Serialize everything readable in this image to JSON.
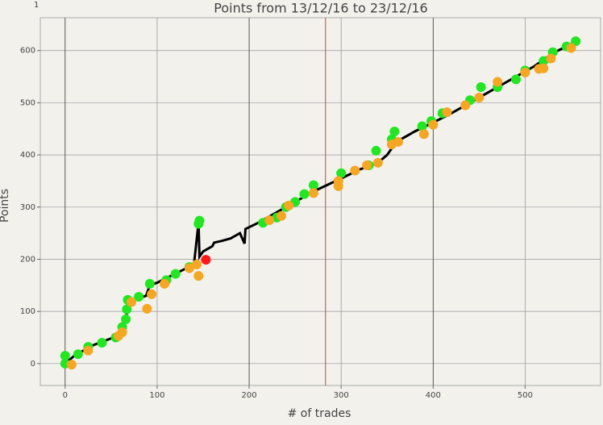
{
  "chart_data": {
    "type": "line",
    "title": "Points from 13/12/16 to 23/12/16",
    "corner_label": "1",
    "xlabel": "# of trades",
    "ylabel": "Points",
    "xlim": [
      -27,
      582
    ],
    "ylim": [
      -42,
      663
    ],
    "xticks": [
      0,
      100,
      200,
      300,
      400,
      500
    ],
    "yticks": [
      0,
      100,
      200,
      300,
      400,
      500,
      600
    ],
    "grid": true,
    "vline": {
      "x": 283,
      "color": "#d04040"
    },
    "series": [
      {
        "mode": "line",
        "color": "#000000",
        "x": [
          0,
          10,
          30,
          60,
          65,
          70,
          88,
          92,
          100,
          140,
          145,
          146,
          150,
          160,
          162,
          170,
          180,
          190,
          195,
          196,
          210,
          240,
          270,
          300,
          320,
          340,
          350,
          360,
          380,
          400,
          420,
          450,
          480,
          510,
          530,
          555
        ],
        "values": [
          0,
          15,
          35,
          55,
          80,
          120,
          130,
          150,
          155,
          190,
          270,
          205,
          215,
          225,
          232,
          235,
          240,
          250,
          230,
          258,
          270,
          300,
          330,
          355,
          372,
          385,
          400,
          425,
          445,
          462,
          480,
          510,
          540,
          570,
          595,
          617
        ]
      },
      {
        "mode": "markers",
        "color": "#22e622",
        "x": [
          0,
          0,
          14,
          25,
          40,
          55,
          62,
          66,
          67,
          68,
          80,
          92,
          110,
          120,
          135,
          145,
          146,
          215,
          230,
          240,
          250,
          260,
          270,
          300,
          330,
          338,
          355,
          358,
          388,
          398,
          410,
          440,
          452,
          470,
          490,
          500,
          520,
          530,
          545,
          555
        ],
        "values": [
          15,
          0,
          18,
          32,
          40,
          50,
          70,
          85,
          104,
          122,
          128,
          153,
          160,
          172,
          185,
          268,
          274,
          270,
          280,
          300,
          310,
          325,
          342,
          365,
          380,
          408,
          430,
          445,
          455,
          465,
          480,
          505,
          530,
          530,
          545,
          562,
          580,
          597,
          608,
          618
        ]
      },
      {
        "mode": "markers",
        "color": "#f5a623",
        "x": [
          7,
          25,
          58,
          62,
          72,
          89,
          94,
          108,
          135,
          143,
          145,
          222,
          235,
          243,
          270,
          297,
          297,
          315,
          328,
          340,
          355,
          362,
          390,
          400,
          415,
          435,
          450,
          470,
          500,
          515,
          520,
          528,
          550
        ],
        "values": [
          -2,
          25,
          53,
          60,
          118,
          105,
          133,
          153,
          183,
          190,
          168,
          275,
          283,
          303,
          327,
          340,
          350,
          370,
          380,
          385,
          420,
          425,
          440,
          458,
          482,
          495,
          510,
          540,
          558,
          565,
          566,
          585,
          605
        ]
      },
      {
        "mode": "markers",
        "color": "#ff1a1a",
        "x": [
          153
        ],
        "values": [
          199
        ]
      }
    ]
  }
}
